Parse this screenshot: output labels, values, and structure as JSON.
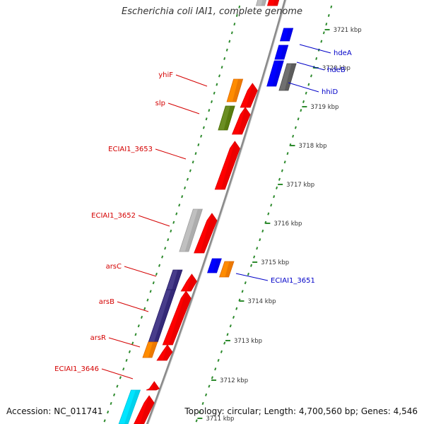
{
  "title": "Escherichia coli IAI1, complete genome",
  "accession": "Accession: NC_011741",
  "summary": "Topology: circular; Length: 4,700,560 bp; Genes: 4,546",
  "scale_unit": "kbp",
  "colors": {
    "backbone": "#8a8a8a",
    "tick_outer": "#2e8b2e",
    "tick_inner": "#2e8b2e",
    "label_forward": "#d40000",
    "label_reverse": "#0000c8",
    "feature_red": "#ff0000",
    "feature_orange": "#ff8c00",
    "feature_olive": "#6b8e23",
    "feature_gray": "#c0c0c0",
    "feature_darkgray": "#707070",
    "feature_purple": "#483d8b",
    "feature_blue": "#0000ff",
    "feature_cyan": "#00e5ff"
  },
  "scale_labels": [
    {
      "kbp": 3721,
      "text": "3721 kbp"
    },
    {
      "kbp": 3720,
      "text": "3720 kbp"
    },
    {
      "kbp": 3719,
      "text": "3719 kbp"
    },
    {
      "kbp": 3718,
      "text": "3718 kbp"
    },
    {
      "kbp": 3717,
      "text": "3717 kbp"
    },
    {
      "kbp": 3716,
      "text": "3716 kbp"
    },
    {
      "kbp": 3715,
      "text": "3715 kbp"
    },
    {
      "kbp": 3714,
      "text": "3714 kbp"
    },
    {
      "kbp": 3713,
      "text": "3713 kbp"
    },
    {
      "kbp": 3712,
      "text": "3712 kbp"
    },
    {
      "kbp": 3711,
      "text": "3711 kbp"
    }
  ],
  "genes": [
    {
      "name": "hdeA",
      "strand": "reverse",
      "color": "feature_blue"
    },
    {
      "name": "hdeB",
      "strand": "reverse",
      "color": "feature_blue"
    },
    {
      "name": "hhiD",
      "strand": "reverse",
      "color": "feature_darkgray"
    },
    {
      "name": "yhiF",
      "strand": "forward",
      "color": "feature_orange"
    },
    {
      "name": "slp",
      "strand": "forward",
      "color": "feature_olive"
    },
    {
      "name": "ECIAI1_3653",
      "strand": "forward",
      "color": "feature_red"
    },
    {
      "name": "ECIAI1_3652",
      "strand": "forward",
      "color": "feature_gray"
    },
    {
      "name": "ECIAI1_3651",
      "strand": "reverse",
      "color": "feature_blue"
    },
    {
      "name": "arsC",
      "strand": "forward",
      "color": "feature_purple"
    },
    {
      "name": "arsB",
      "strand": "forward",
      "color": "feature_purple"
    },
    {
      "name": "arsR",
      "strand": "forward",
      "color": "feature_orange"
    },
    {
      "name": "ECIAI1_3646",
      "strand": "forward",
      "color": "feature_red"
    }
  ]
}
